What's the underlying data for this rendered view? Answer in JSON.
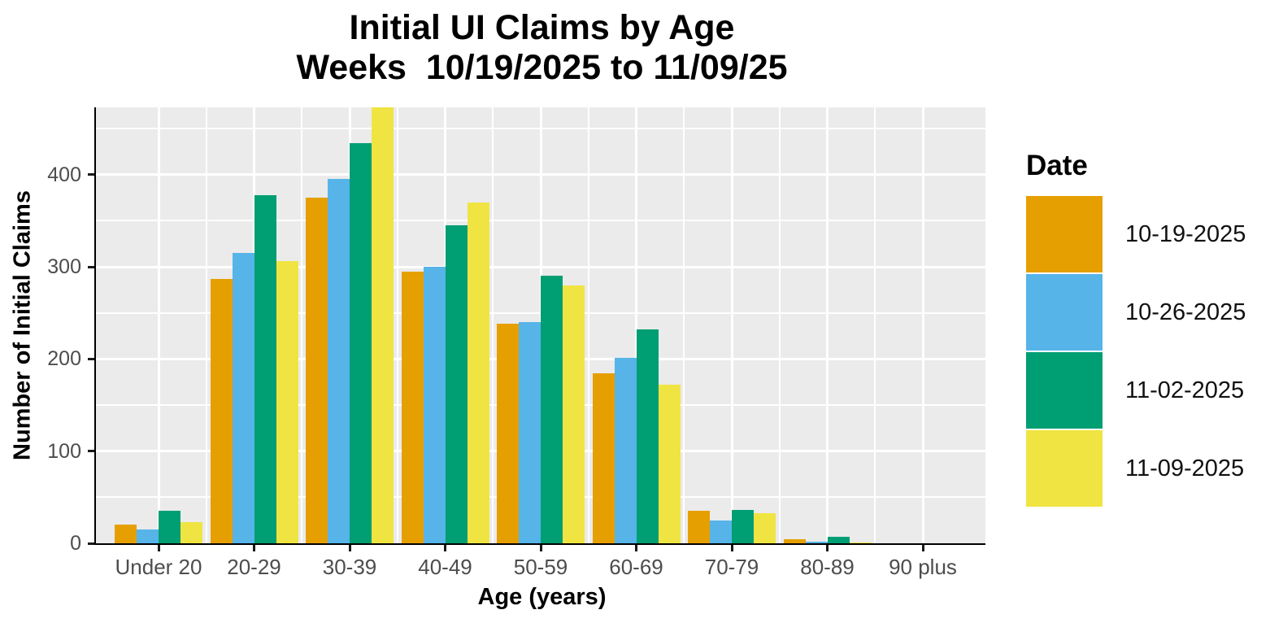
{
  "chart_data": {
    "type": "bar",
    "title": "Initial UI Claims by Age",
    "subtitle": "Weeks  10/19/2025 to 11/09/25",
    "xlabel": "Age (years)",
    "ylabel": "Number of Initial Claims",
    "legend_title": "Date",
    "legend_position": "right",
    "grid": true,
    "panel_bg": "#EBEBEB",
    "grid_color": "#FFFFFF",
    "axis_text_color": "#4D4D4D",
    "ylim": [
      0,
      473
    ],
    "yticks": [
      0,
      100,
      200,
      300,
      400
    ],
    "yticks_minor": [
      50,
      150,
      250,
      350,
      450
    ],
    "categories": [
      "Under 20",
      "20-29",
      "30-39",
      "40-49",
      "50-59",
      "60-69",
      "70-79",
      "80-89",
      "90 plus"
    ],
    "series": [
      {
        "name": "10-19-2025",
        "color": "#E69F00",
        "values": [
          20,
          287,
          375,
          295,
          238,
          184,
          35,
          4,
          0
        ]
      },
      {
        "name": "10-26-2025",
        "color": "#56B4E9",
        "values": [
          15,
          315,
          395,
          300,
          240,
          201,
          25,
          2,
          0
        ]
      },
      {
        "name": "11-02-2025",
        "color": "#009E73",
        "values": [
          35,
          378,
          434,
          345,
          290,
          232,
          36,
          7,
          0
        ]
      },
      {
        "name": "11-09-2025",
        "color": "#F0E442",
        "values": [
          23,
          306,
          473,
          370,
          280,
          172,
          33,
          1,
          0
        ]
      }
    ],
    "note_clipped_bar": "11-09-2025 value for 30-39 reaches the top of the panel (~473)"
  }
}
